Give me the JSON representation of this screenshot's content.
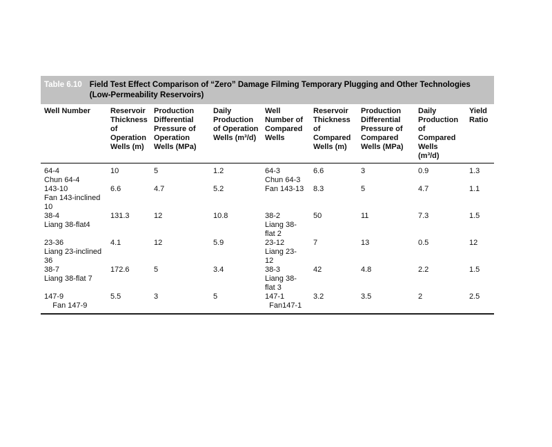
{
  "table": {
    "label": "Table 6.10",
    "title_line1": "Field Test Effect Comparison of “Zero” Damage Filming Temporary Plugging and Other Technologies",
    "title_line2": "(Low-Permeability Reservoirs)",
    "band_color": "#c1c1c1",
    "columns": [
      "Well Number",
      "Reservoir\nThickness\nof\nOperation\nWells (m)",
      "Production\nDifferential\nPressure of\nOperation\nWells (MPa)",
      "Daily\nProduction\nof Operation\nWells (m³/d)",
      "Well\nNumber of\nCompared\nWells",
      "Reservoir\nThickness\nof\nCompared\nWells (m)",
      "Production\nDifferential\nPressure of\nCompared\nWells (MPa)",
      "Daily\nProduction\nof\nCompared\nWells\n(m³/d)",
      "Yield\nRatio"
    ],
    "rows": [
      {
        "cells": [
          "64-4\nChun 64-4",
          "10",
          "5",
          "1.2",
          "64-3\nChun 64-3",
          "6.6",
          "3",
          "0.9",
          "1.3"
        ]
      },
      {
        "cells": [
          "143-10\nFan 143-inclined\n10",
          "6.6",
          "4.7",
          "5.2",
          "Fan 143-13",
          "8.3",
          "5",
          "4.7",
          "1.1"
        ]
      },
      {
        "cells": [
          "38-4\nLiang 38-flat4",
          "131.3",
          "12",
          "10.8",
          "38-2\nLiang 38-\nflat 2",
          "50",
          "11",
          "7.3",
          "1.5"
        ]
      },
      {
        "cells": [
          "23-36\nLiang 23-inclined\n36",
          "4.1",
          "12",
          "5.9",
          "23-12\nLiang 23-\n12",
          "7",
          "13",
          "0.5",
          "12"
        ]
      },
      {
        "cells": [
          "38-7\nLiang 38-flat 7",
          "172.6",
          "5",
          "3.4",
          "38-3\nLiang 38-\nflat 3",
          "42",
          "4.8",
          "2.2",
          "1.5"
        ]
      },
      {
        "cells": [
          "147-9\n    Fan 147-9",
          "5.5",
          "3",
          "5",
          "147-1\n  Fan147-1",
          "3.2",
          "3.5",
          "2",
          "2.5"
        ]
      }
    ]
  }
}
